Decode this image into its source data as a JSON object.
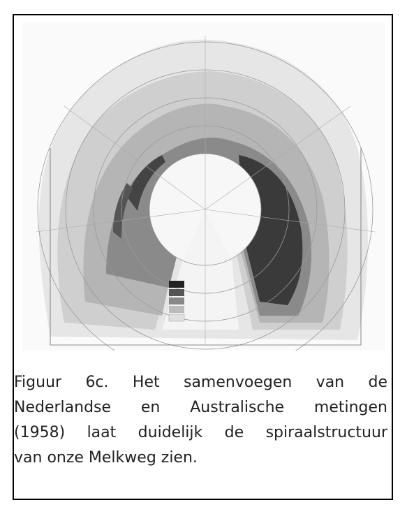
{
  "caption": {
    "lines": [
      "Figuur 6c. Het samenvoegen van de",
      "Nederlandse en Australische metingen",
      "(1958) laat duidelijk de spiraalstructuur",
      "van onze Melkweg zien."
    ]
  }
}
